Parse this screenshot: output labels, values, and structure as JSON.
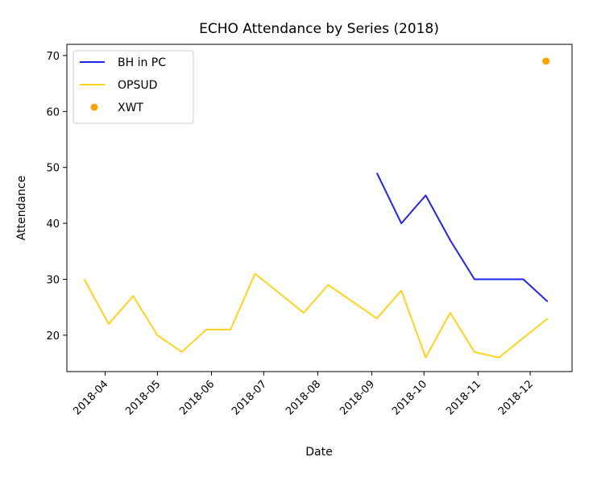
{
  "chart_data": {
    "type": "line",
    "title": "ECHO Attendance by Series (2018)",
    "xlabel": "Date",
    "ylabel": "Attendance",
    "xlim": [
      "2018-03-10",
      "2018-12-25"
    ],
    "ylim": [
      13.5,
      72
    ],
    "x_ticks": [
      "2018-04",
      "2018-05",
      "2018-06",
      "2018-07",
      "2018-08",
      "2018-09",
      "2018-10",
      "2018-11",
      "2018-12"
    ],
    "y_ticks": [
      20,
      30,
      40,
      50,
      60,
      70
    ],
    "grid": false,
    "legend_position": "top-left",
    "series": [
      {
        "name": "BH in PC",
        "kind": "line",
        "color": "#2222ee",
        "points": [
          {
            "x": "2018-09-04",
            "y": 49
          },
          {
            "x": "2018-09-18",
            "y": 40
          },
          {
            "x": "2018-10-02",
            "y": 45
          },
          {
            "x": "2018-10-16",
            "y": 37
          },
          {
            "x": "2018-10-30",
            "y": 30
          },
          {
            "x": "2018-11-27",
            "y": 30
          },
          {
            "x": "2018-12-11",
            "y": 26
          }
        ]
      },
      {
        "name": "OPSUD",
        "kind": "line",
        "color": "#ffd21e",
        "points": [
          {
            "x": "2018-03-20",
            "y": 30
          },
          {
            "x": "2018-04-03",
            "y": 22
          },
          {
            "x": "2018-04-17",
            "y": 27
          },
          {
            "x": "2018-05-01",
            "y": 20
          },
          {
            "x": "2018-05-15",
            "y": 17
          },
          {
            "x": "2018-05-29",
            "y": 21
          },
          {
            "x": "2018-06-12",
            "y": 21
          },
          {
            "x": "2018-06-26",
            "y": 31
          },
          {
            "x": "2018-07-24",
            "y": 24
          },
          {
            "x": "2018-08-07",
            "y": 29
          },
          {
            "x": "2018-09-04",
            "y": 23
          },
          {
            "x": "2018-09-18",
            "y": 28
          },
          {
            "x": "2018-10-02",
            "y": 16
          },
          {
            "x": "2018-10-16",
            "y": 24
          },
          {
            "x": "2018-10-30",
            "y": 17
          },
          {
            "x": "2018-11-13",
            "y": 16
          },
          {
            "x": "2018-12-11",
            "y": 23
          }
        ]
      },
      {
        "name": "XWT",
        "kind": "scatter",
        "color": "#ffa500",
        "points": [
          {
            "x": "2018-12-10",
            "y": 69
          }
        ]
      }
    ]
  }
}
